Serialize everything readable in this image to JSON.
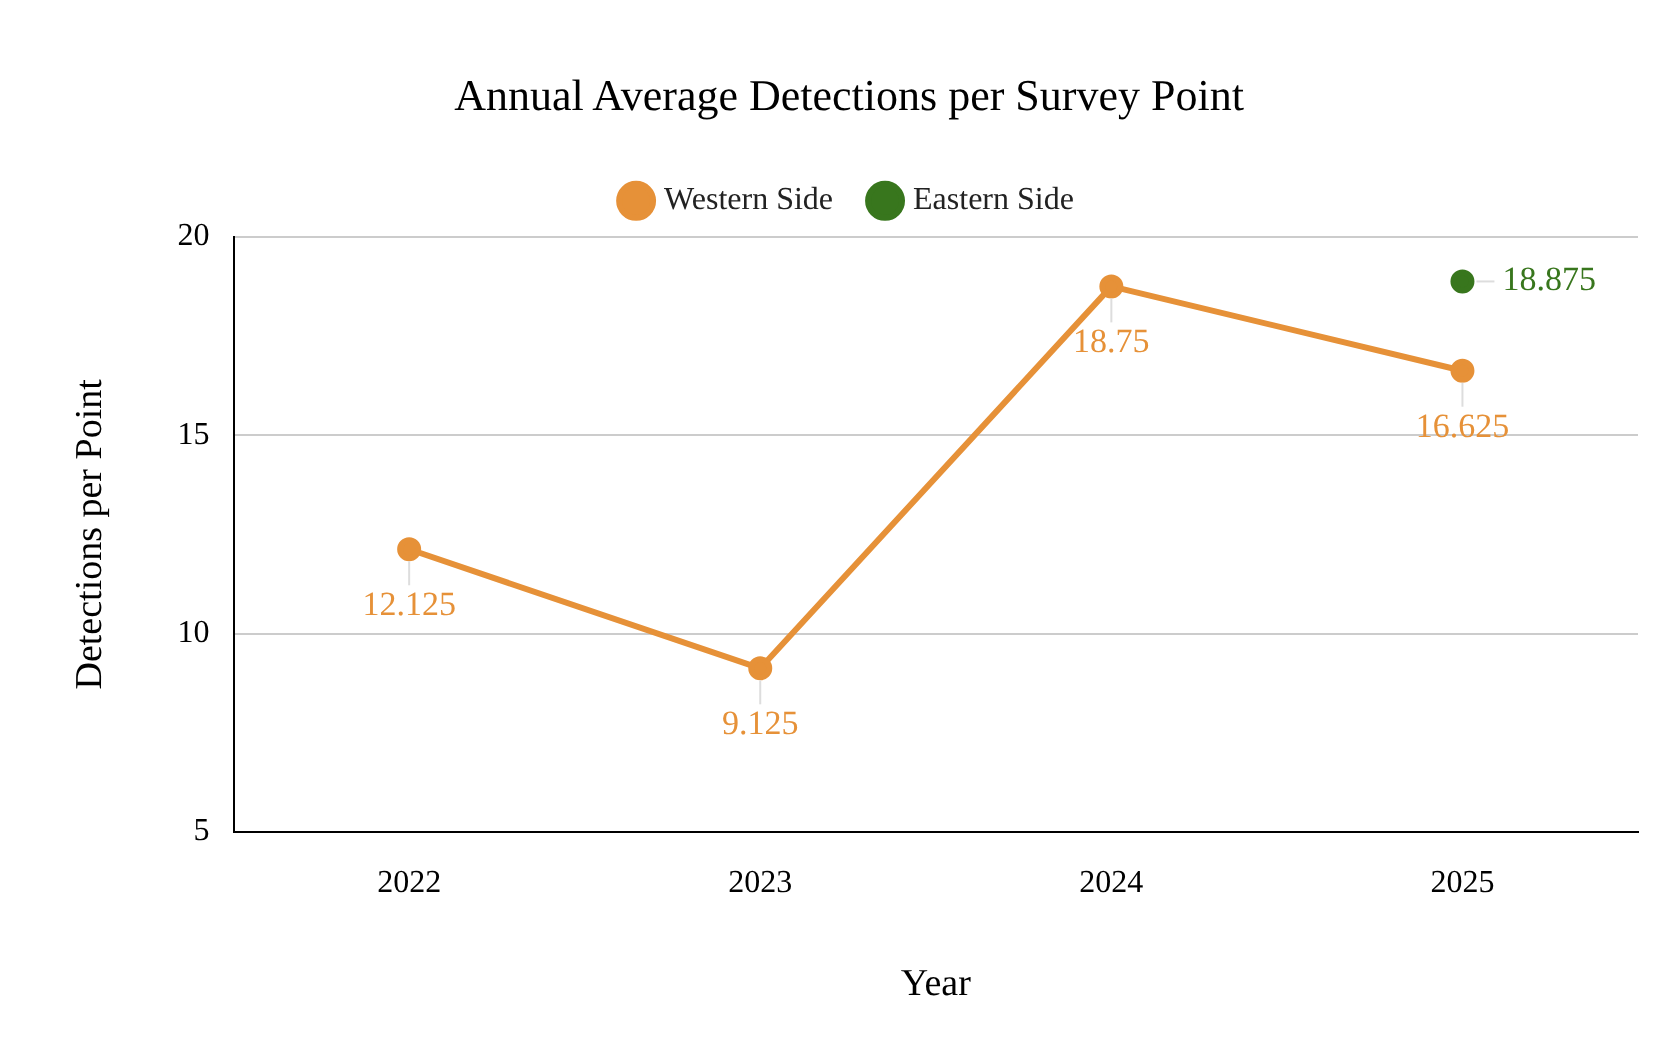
{
  "chart_data": {
    "type": "line",
    "title": "Annual Average Detections per Survey Point",
    "xlabel": "Year",
    "ylabel": "Detections per Point",
    "categories": [
      "2022",
      "2023",
      "2024",
      "2025"
    ],
    "series": [
      {
        "name": "Western Side",
        "color": "#e69138",
        "values": [
          12.125,
          9.125,
          18.75,
          16.625
        ]
      },
      {
        "name": "Eastern Side",
        "color": "#38761d",
        "values": [
          null,
          null,
          null,
          18.875
        ]
      }
    ],
    "ylim": [
      5,
      20
    ],
    "yticks": [
      5,
      10,
      15,
      20
    ],
    "grid": "y",
    "legend": "top",
    "marker": "circle",
    "line_style": "solid",
    "data_labels": true
  }
}
